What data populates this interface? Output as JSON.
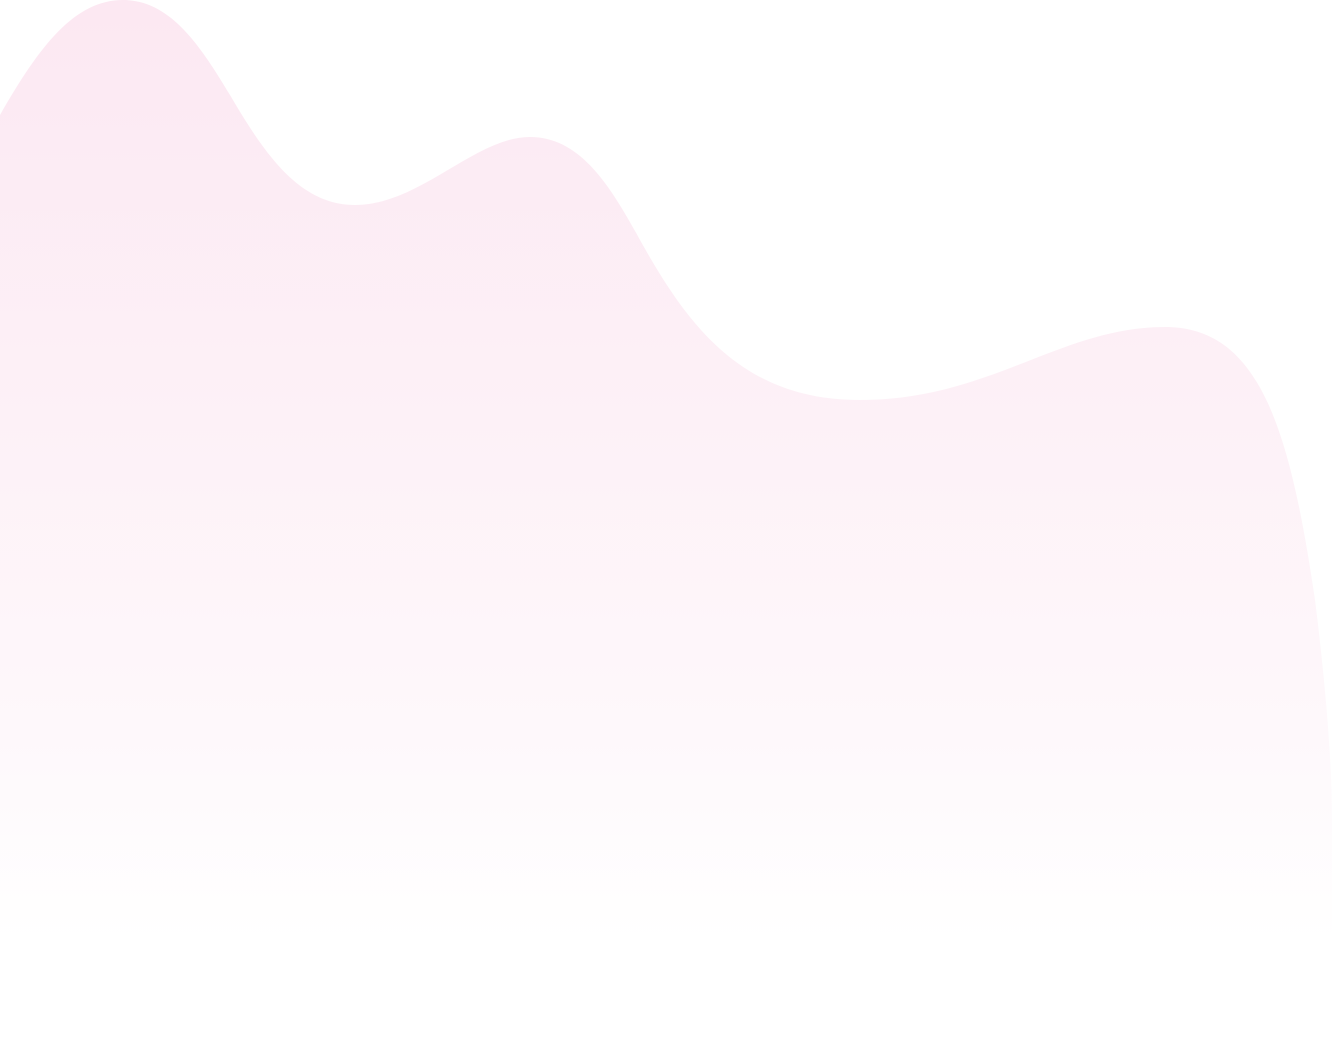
{
  "background": {
    "base_color": "#ffffff",
    "wave_color_top": "#fdf0f6",
    "wave_color_bottom": "#ffffff",
    "shape": "decorative-wave"
  }
}
